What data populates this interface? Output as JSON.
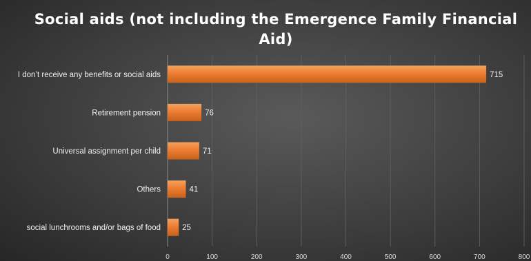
{
  "chart_data": {
    "type": "bar",
    "orientation": "horizontal",
    "title": "Social aids (not including the Emergence Family Financial Aid)",
    "categories": [
      "I don’t receive any benefits or social aids",
      "Retirement pension",
      "Universal assignment per child",
      "Others",
      "social lunchrooms and/or bags of food"
    ],
    "values": [
      715,
      76,
      71,
      41,
      25
    ],
    "xlim": [
      0,
      800
    ],
    "xticks": [
      "0",
      "100",
      "200",
      "300",
      "400",
      "500",
      "600",
      "700",
      "800"
    ],
    "grid": true,
    "bar_color": "#ed7d31",
    "background_color": "#404040"
  }
}
